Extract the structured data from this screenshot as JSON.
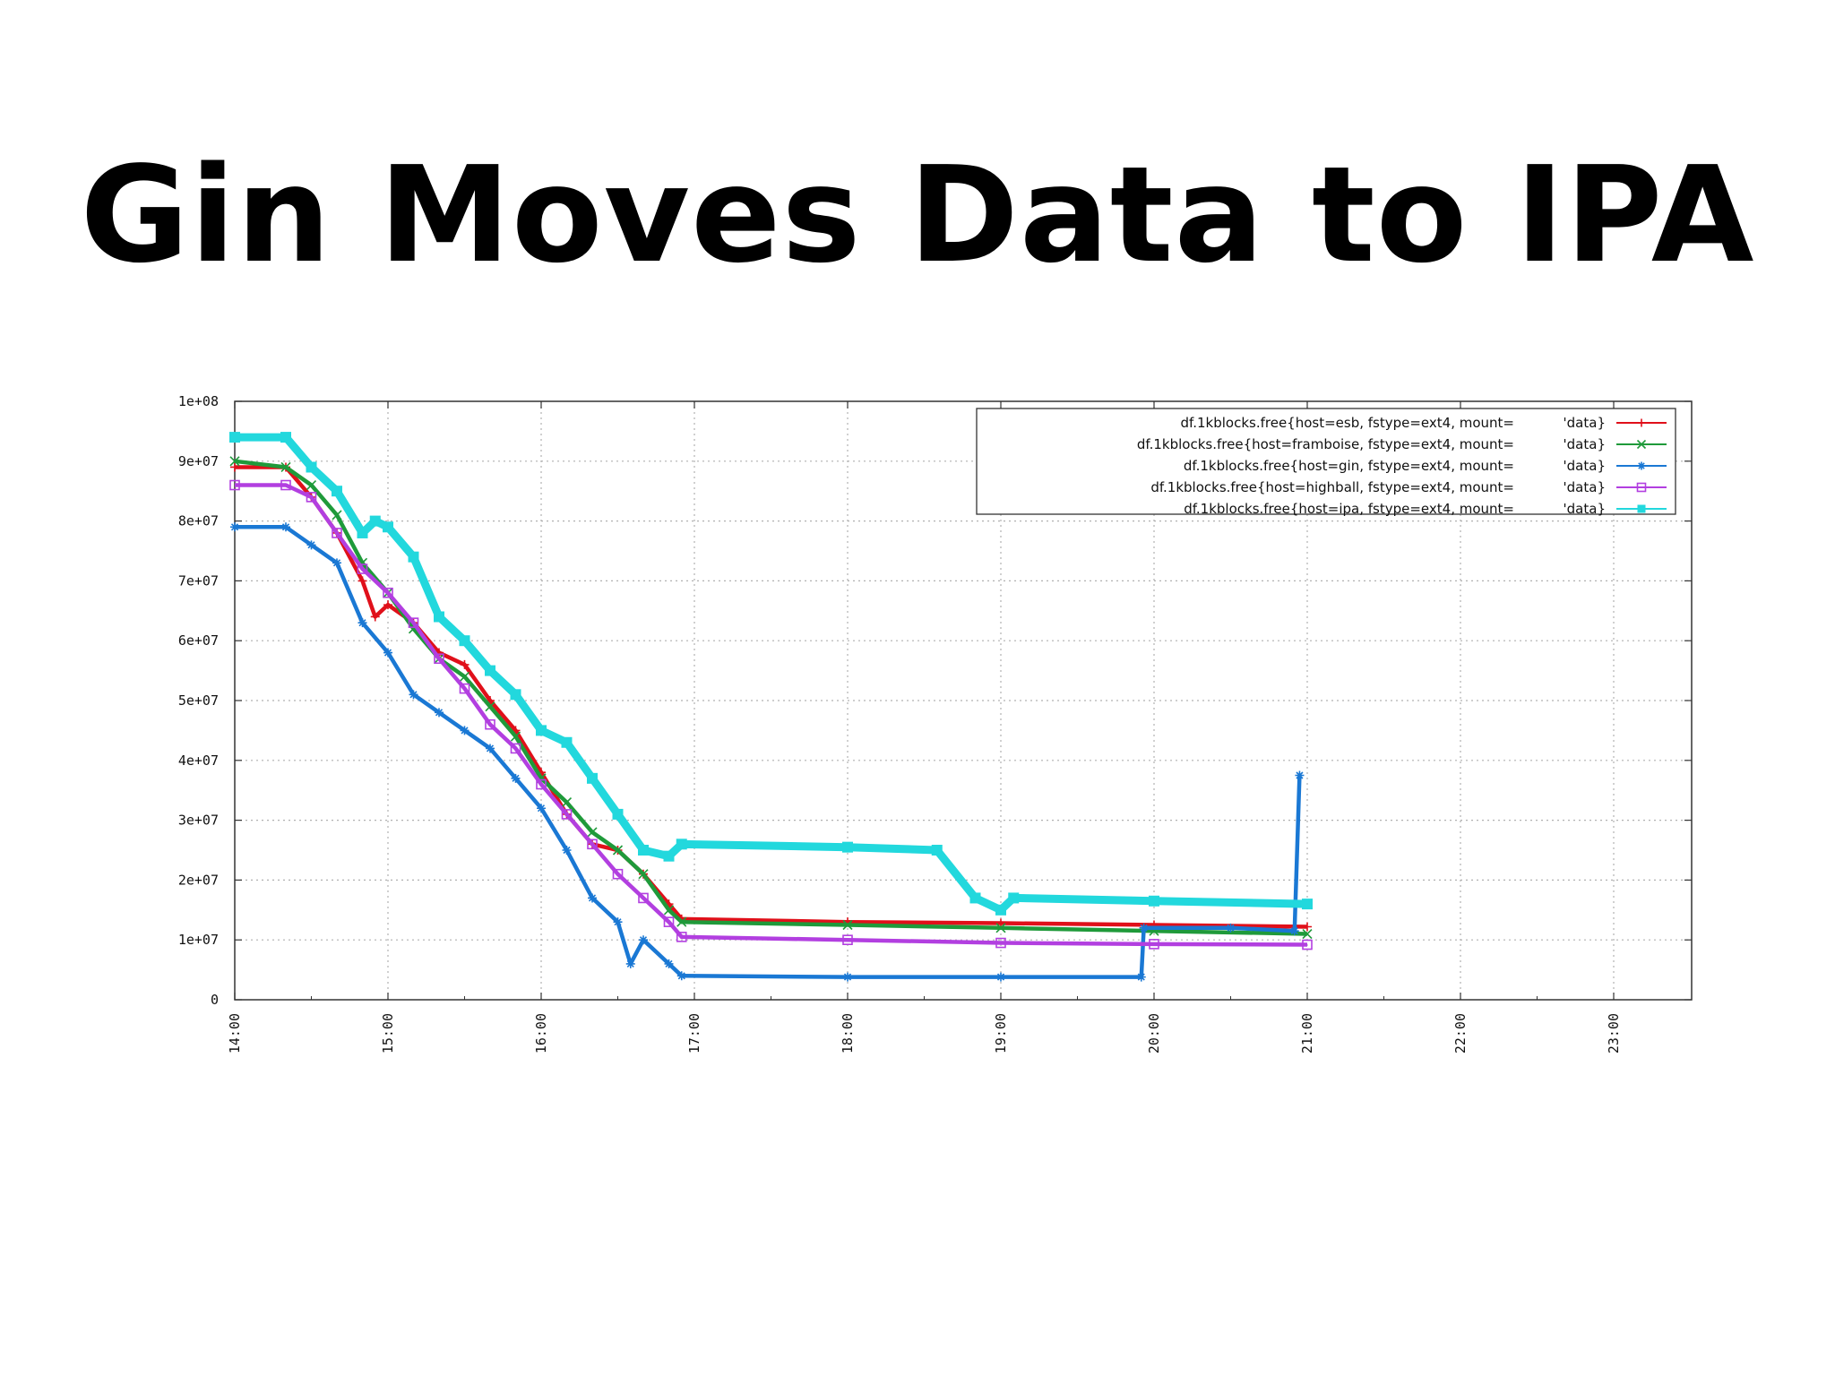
{
  "slide": {
    "title": "Gin Moves Data to IPA"
  },
  "chart_data": {
    "type": "line",
    "title": "",
    "xlabel": "",
    "ylabel": "",
    "x_ticks": [
      "14:00",
      "15:00",
      "16:00",
      "17:00",
      "18:00",
      "19:00",
      "20:00",
      "21:00",
      "22:00",
      "23:00"
    ],
    "x_range_hours": [
      14,
      23.5
    ],
    "y_ticks": [
      "0",
      "1e+07",
      "2e+07",
      "3e+07",
      "4e+07",
      "5e+07",
      "6e+07",
      "7e+07",
      "8e+07",
      "9e+07",
      "1e+08"
    ],
    "ylim": [
      0,
      100000000
    ],
    "grid": true,
    "legend_position": "top-right",
    "series": [
      {
        "name": "df.1kblocks.free{host=esb, fstype=ext4, mount=",
        "legend_suffix": "'data}",
        "color": "#e0101a",
        "marker": "plus",
        "points": [
          [
            "14:00",
            89000000
          ],
          [
            "14:20",
            89000000
          ],
          [
            "14:30",
            84000000
          ],
          [
            "14:40",
            78000000
          ],
          [
            "14:50",
            70000000
          ],
          [
            "14:55",
            64000000
          ],
          [
            "15:00",
            66000000
          ],
          [
            "15:10",
            63000000
          ],
          [
            "15:20",
            58000000
          ],
          [
            "15:30",
            56000000
          ],
          [
            "15:40",
            50000000
          ],
          [
            "15:50",
            45000000
          ],
          [
            "16:00",
            38000000
          ],
          [
            "16:10",
            31000000
          ],
          [
            "16:20",
            26000000
          ],
          [
            "16:30",
            25000000
          ],
          [
            "16:40",
            21000000
          ],
          [
            "16:50",
            16000000
          ],
          [
            "16:55",
            13500000
          ],
          [
            "18:00",
            13000000
          ],
          [
            "19:00",
            12800000
          ],
          [
            "20:00",
            12500000
          ],
          [
            "21:00",
            12200000
          ]
        ]
      },
      {
        "name": "df.1kblocks.free{host=framboise, fstype=ext4, mount=",
        "legend_suffix": "'data}",
        "color": "#1f9a3a",
        "marker": "cross",
        "points": [
          [
            "14:00",
            90000000
          ],
          [
            "14:20",
            89000000
          ],
          [
            "14:30",
            86000000
          ],
          [
            "14:40",
            81000000
          ],
          [
            "14:50",
            73000000
          ],
          [
            "15:00",
            68000000
          ],
          [
            "15:10",
            62000000
          ],
          [
            "15:20",
            57000000
          ],
          [
            "15:30",
            54000000
          ],
          [
            "15:40",
            49000000
          ],
          [
            "15:50",
            44000000
          ],
          [
            "16:00",
            37000000
          ],
          [
            "16:10",
            33000000
          ],
          [
            "16:20",
            28000000
          ],
          [
            "16:30",
            25000000
          ],
          [
            "16:40",
            21000000
          ],
          [
            "16:50",
            15000000
          ],
          [
            "16:55",
            13000000
          ],
          [
            "18:00",
            12500000
          ],
          [
            "19:00",
            12000000
          ],
          [
            "20:00",
            11500000
          ],
          [
            "21:00",
            11000000
          ]
        ]
      },
      {
        "name": "df.1kblocks.free{host=gin, fstype=ext4, mount=",
        "legend_suffix": "'data}",
        "color": "#1a78d4",
        "marker": "star",
        "points": [
          [
            "14:00",
            79000000
          ],
          [
            "14:20",
            79000000
          ],
          [
            "14:30",
            76000000
          ],
          [
            "14:40",
            73000000
          ],
          [
            "14:50",
            63000000
          ],
          [
            "15:00",
            58000000
          ],
          [
            "15:10",
            51000000
          ],
          [
            "15:20",
            48000000
          ],
          [
            "15:30",
            45000000
          ],
          [
            "15:40",
            42000000
          ],
          [
            "15:50",
            37000000
          ],
          [
            "16:00",
            32000000
          ],
          [
            "16:10",
            25000000
          ],
          [
            "16:20",
            17000000
          ],
          [
            "16:30",
            13000000
          ],
          [
            "16:35",
            6000000
          ],
          [
            "16:40",
            10000000
          ],
          [
            "16:50",
            6000000
          ],
          [
            "16:55",
            4000000
          ],
          [
            "18:00",
            3800000
          ],
          [
            "19:00",
            3800000
          ],
          [
            "19:55",
            3800000
          ],
          [
            "19:56",
            12000000
          ],
          [
            "20:30",
            12000000
          ],
          [
            "20:55",
            11500000
          ],
          [
            "20:57",
            37500000
          ]
        ]
      },
      {
        "name": "df.1kblocks.free{host=highball, fstype=ext4, mount=",
        "legend_suffix": "'data}",
        "color": "#b23fe0",
        "marker": "square",
        "points": [
          [
            "14:00",
            86000000
          ],
          [
            "14:20",
            86000000
          ],
          [
            "14:30",
            84000000
          ],
          [
            "14:40",
            78000000
          ],
          [
            "14:50",
            72000000
          ],
          [
            "15:00",
            68000000
          ],
          [
            "15:10",
            63000000
          ],
          [
            "15:20",
            57000000
          ],
          [
            "15:30",
            52000000
          ],
          [
            "15:40",
            46000000
          ],
          [
            "15:50",
            42000000
          ],
          [
            "16:00",
            36000000
          ],
          [
            "16:10",
            31000000
          ],
          [
            "16:20",
            26000000
          ],
          [
            "16:30",
            21000000
          ],
          [
            "16:40",
            17000000
          ],
          [
            "16:50",
            13000000
          ],
          [
            "16:55",
            10500000
          ],
          [
            "18:00",
            10000000
          ],
          [
            "19:00",
            9500000
          ],
          [
            "20:00",
            9300000
          ],
          [
            "21:00",
            9200000
          ]
        ]
      },
      {
        "name": "df.1kblocks.free{host=ipa, fstype=ext4, mount=",
        "legend_suffix": "'data}",
        "color": "#22d8dd",
        "marker": "filled-square",
        "points": [
          [
            "14:00",
            94000000
          ],
          [
            "14:20",
            94000000
          ],
          [
            "14:30",
            89000000
          ],
          [
            "14:40",
            85000000
          ],
          [
            "14:50",
            78000000
          ],
          [
            "14:55",
            80000000
          ],
          [
            "15:00",
            79000000
          ],
          [
            "15:10",
            74000000
          ],
          [
            "15:20",
            64000000
          ],
          [
            "15:30",
            60000000
          ],
          [
            "15:40",
            55000000
          ],
          [
            "15:50",
            51000000
          ],
          [
            "16:00",
            45000000
          ],
          [
            "16:10",
            43000000
          ],
          [
            "16:20",
            37000000
          ],
          [
            "16:30",
            31000000
          ],
          [
            "16:40",
            25000000
          ],
          [
            "16:50",
            24000000
          ],
          [
            "16:55",
            26000000
          ],
          [
            "18:00",
            25500000
          ],
          [
            "18:35",
            25000000
          ],
          [
            "18:50",
            17000000
          ],
          [
            "19:00",
            15000000
          ],
          [
            "19:05",
            17000000
          ],
          [
            "20:00",
            16500000
          ],
          [
            "21:00",
            16000000
          ]
        ]
      }
    ]
  }
}
